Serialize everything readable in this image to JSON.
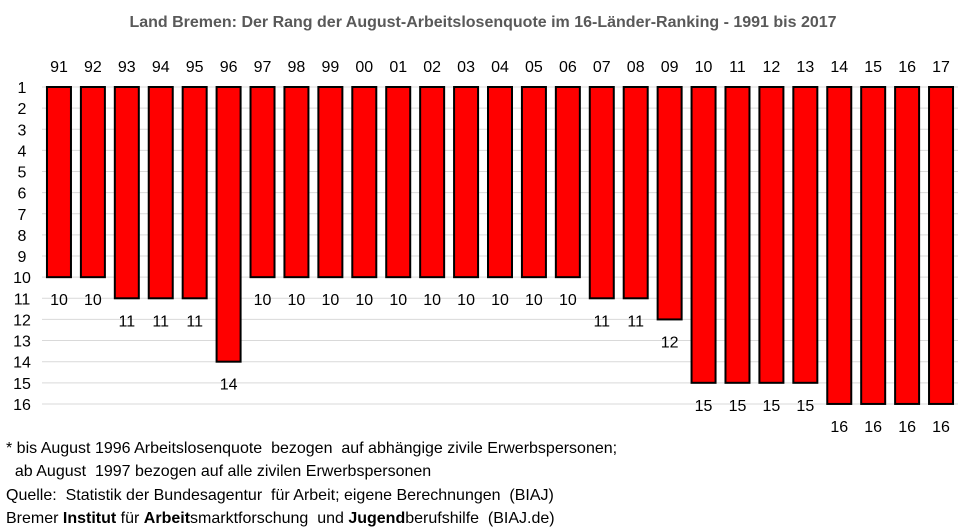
{
  "chart_data": {
    "type": "bar",
    "title": "Land Bremen: Der Rang der August-Arbeitslosenquote  im 16-Länder-Ranking  - 1991 bis 2017",
    "categories": [
      "91",
      "92",
      "93",
      "94",
      "95",
      "96",
      "97",
      "98",
      "99",
      "00",
      "01",
      "02",
      "03",
      "04",
      "05",
      "06",
      "07",
      "08",
      "09",
      "10",
      "11",
      "12",
      "13",
      "14",
      "15",
      "16",
      "17"
    ],
    "values": [
      10,
      10,
      11,
      11,
      11,
      14,
      10,
      10,
      10,
      10,
      10,
      10,
      10,
      10,
      10,
      10,
      11,
      11,
      12,
      15,
      15,
      15,
      15,
      16,
      16,
      16,
      16
    ],
    "yticks": [
      1,
      2,
      3,
      4,
      5,
      6,
      7,
      8,
      9,
      10,
      11,
      12,
      13,
      14,
      15,
      16
    ],
    "ylim": [
      1,
      16
    ],
    "y_inverted": true,
    "xlabel": "",
    "ylabel": "",
    "grid": true,
    "bar_color": "#ff0000"
  },
  "notes": {
    "line1": "* bis August 1996 Arbeitslosenquote  bezogen  auf abhängige zivile Erwerbspersonen;",
    "line2": "  ab August  1997 bezogen auf alle zivilen Erwerbspersonen"
  },
  "source": {
    "line": "Quelle:  Statistik der Bundesagentur  für Arbeit; eigene Berechnungen  (BIAJ)",
    "credit_parts": [
      {
        "text": "Bremer ",
        "bold": false
      },
      {
        "text": "Institut",
        "bold": true
      },
      {
        "text": " für ",
        "bold": false
      },
      {
        "text": "Arbeit",
        "bold": true
      },
      {
        "text": "smarktforschung  und ",
        "bold": false
      },
      {
        "text": "Jugend",
        "bold": true
      },
      {
        "text": "berufshilfe  (BIAJ.de)",
        "bold": false
      }
    ]
  }
}
